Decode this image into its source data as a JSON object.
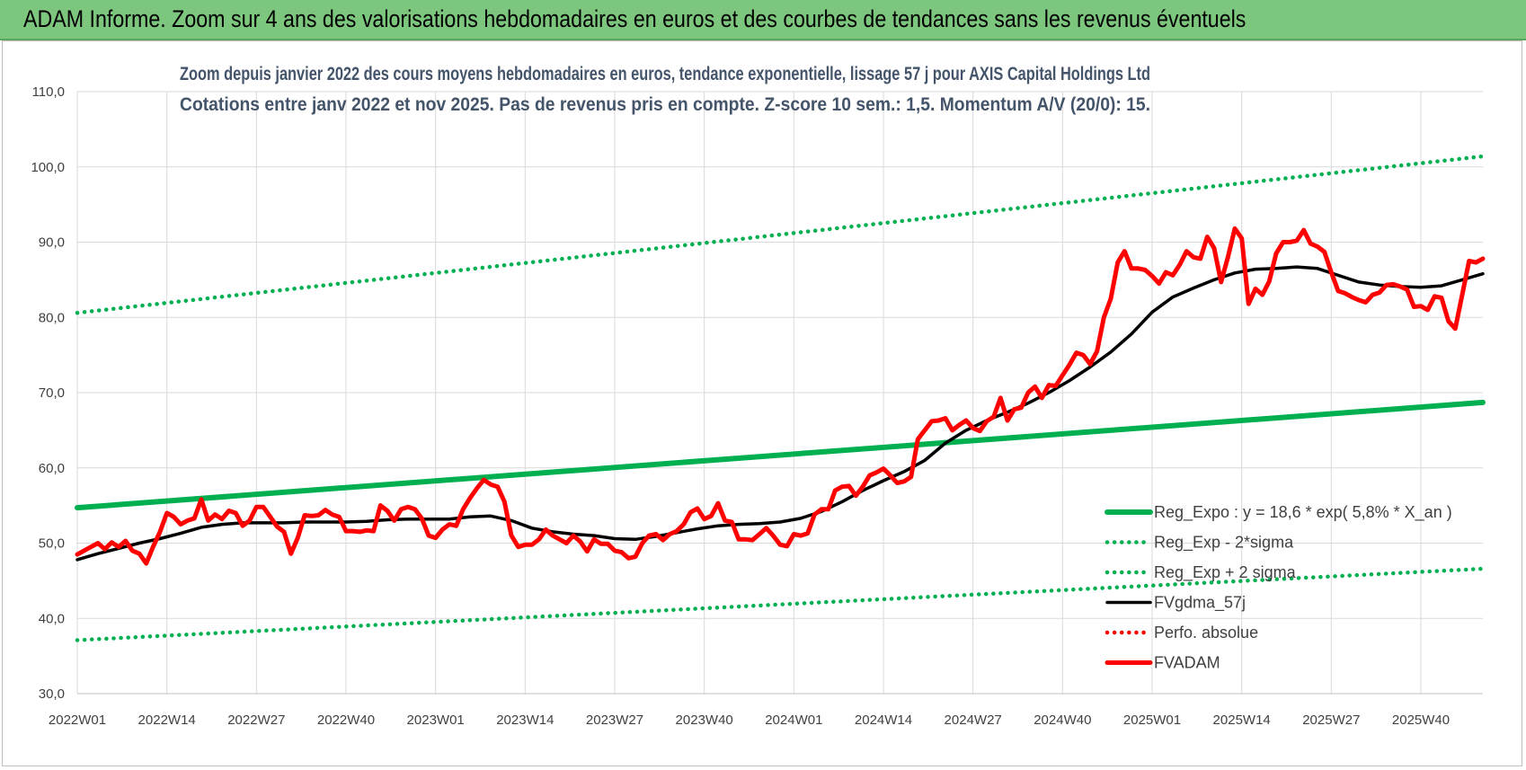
{
  "banner": {
    "title": "ADAM Informe. Zoom sur 4 ans des valorisations hebdomadaires en euros et des courbes de tendances sans les revenus éventuels"
  },
  "colors": {
    "banner": "#7dc67d",
    "trend": "#00b050",
    "price": "#ff0000",
    "moving_average": "#000000",
    "grid": "#d9d9d9"
  },
  "chart_data": {
    "type": "line",
    "title": "Zoom depuis janvier 2022 des cours moyens hebdomadaires en euros, tendance exponentielle, lissage 57 j pour AXIS Capital Holdings Ltd",
    "subtitle": "Cotations entre janv 2022 et nov 2025. Pas de revenus pris en compte. Z-score 10 sem.: 1,5. Momentum A/V (20/0): 15.",
    "ylim": [
      30,
      110
    ],
    "yticks": [
      "30,0",
      "40,0",
      "50,0",
      "60,0",
      "70,0",
      "80,0",
      "90,0",
      "100,0",
      "110,0"
    ],
    "x_tick_labels": [
      "2022W01",
      "2022W14",
      "2022W27",
      "2022W40",
      "2023W01",
      "2023W14",
      "2023W27",
      "2023W40",
      "2024W01",
      "2024W14",
      "2024W27",
      "2024W40",
      "2025W01",
      "2025W14",
      "2025W27",
      "2025W40"
    ],
    "x_tick_weeks": [
      0,
      13,
      26,
      39,
      52,
      65,
      78,
      91,
      104,
      117,
      130,
      143,
      156,
      169,
      182,
      195
    ],
    "x_range_weeks": [
      0,
      204
    ],
    "grid": true,
    "legend_position": "bottom-right",
    "series": [
      {
        "name": "Reg_Expo : y = 18,6 * exp( 5,8% *  X_an )",
        "style": "solid-thick",
        "color": "#00b050",
        "points": [
          [
            0,
            54.7
          ],
          [
            204,
            68.7
          ]
        ]
      },
      {
        "name": "Reg_Exp - 2*sigma",
        "style": "dotted",
        "color": "#00b050",
        "points": [
          [
            0,
            37.1
          ],
          [
            204,
            46.6
          ]
        ]
      },
      {
        "name": "Reg_Exp + 2 sigma",
        "style": "dotted",
        "color": "#00b050",
        "points": [
          [
            0,
            80.6
          ],
          [
            204,
            101.4
          ]
        ]
      },
      {
        "name": "FVgdma_57j",
        "style": "solid",
        "color": "#000000",
        "points": [
          [
            0,
            47.8
          ],
          [
            3,
            48.6
          ],
          [
            6,
            49.3
          ],
          [
            9,
            50.0
          ],
          [
            12,
            50.6
          ],
          [
            15,
            51.3
          ],
          [
            18,
            52.1
          ],
          [
            21,
            52.5
          ],
          [
            24,
            52.7
          ],
          [
            27,
            52.7
          ],
          [
            30,
            52.7
          ],
          [
            33,
            52.8
          ],
          [
            36,
            52.8
          ],
          [
            39,
            52.8
          ],
          [
            42,
            52.9
          ],
          [
            45,
            53.1
          ],
          [
            48,
            53.2
          ],
          [
            51,
            53.2
          ],
          [
            54,
            53.2
          ],
          [
            57,
            53.5
          ],
          [
            60,
            53.6
          ],
          [
            63,
            53.0
          ],
          [
            66,
            52.0
          ],
          [
            69,
            51.5
          ],
          [
            72,
            51.2
          ],
          [
            75,
            51.0
          ],
          [
            78,
            50.6
          ],
          [
            81,
            50.5
          ],
          [
            84,
            50.9
          ],
          [
            87,
            51.4
          ],
          [
            90,
            51.9
          ],
          [
            93,
            52.3
          ],
          [
            96,
            52.5
          ],
          [
            99,
            52.6
          ],
          [
            102,
            52.8
          ],
          [
            105,
            53.3
          ],
          [
            108,
            54.2
          ],
          [
            111,
            55.5
          ],
          [
            114,
            57.0
          ],
          [
            117,
            58.3
          ],
          [
            120,
            59.5
          ],
          [
            123,
            61.0
          ],
          [
            126,
            63.3
          ],
          [
            129,
            65.0
          ],
          [
            132,
            66.3
          ],
          [
            135,
            67.4
          ],
          [
            138,
            68.6
          ],
          [
            141,
            70.0
          ],
          [
            144,
            71.6
          ],
          [
            147,
            73.4
          ],
          [
            150,
            75.4
          ],
          [
            153,
            77.8
          ],
          [
            156,
            80.7
          ],
          [
            159,
            82.7
          ],
          [
            162,
            83.9
          ],
          [
            165,
            85.0
          ],
          [
            168,
            85.9
          ],
          [
            171,
            86.4
          ],
          [
            174,
            86.5
          ],
          [
            177,
            86.7
          ],
          [
            180,
            86.5
          ],
          [
            183,
            85.6
          ],
          [
            186,
            84.7
          ],
          [
            189,
            84.3
          ],
          [
            192,
            84.1
          ],
          [
            195,
            84.0
          ],
          [
            198,
            84.2
          ],
          [
            201,
            85.0
          ],
          [
            204,
            85.8
          ]
        ]
      },
      {
        "name": "Perfo. absolue",
        "style": "dotted",
        "color": "#ff0000",
        "points": []
      },
      {
        "name": "FVADAM",
        "style": "solid-thick",
        "color": "#ff0000",
        "points": [
          [
            0,
            48.5
          ],
          [
            2,
            49.5
          ],
          [
            3,
            50.0
          ],
          [
            4,
            49.2
          ],
          [
            5,
            50.1
          ],
          [
            6,
            49.5
          ],
          [
            7,
            50.3
          ],
          [
            8,
            49.0
          ],
          [
            9,
            48.6
          ],
          [
            10,
            47.3
          ],
          [
            11,
            49.5
          ],
          [
            12,
            51.5
          ],
          [
            13,
            54.0
          ],
          [
            14,
            53.5
          ],
          [
            15,
            52.5
          ],
          [
            16,
            53.0
          ],
          [
            17,
            53.3
          ],
          [
            18,
            55.8
          ],
          [
            19,
            53.0
          ],
          [
            20,
            53.8
          ],
          [
            21,
            53.2
          ],
          [
            22,
            54.3
          ],
          [
            23,
            54.0
          ],
          [
            24,
            52.3
          ],
          [
            25,
            53.0
          ],
          [
            26,
            54.8
          ],
          [
            27,
            54.8
          ],
          [
            28,
            53.5
          ],
          [
            29,
            52.2
          ],
          [
            30,
            51.5
          ],
          [
            31,
            48.6
          ],
          [
            32,
            50.7
          ],
          [
            33,
            53.7
          ],
          [
            34,
            53.6
          ],
          [
            35,
            53.7
          ],
          [
            36,
            54.4
          ],
          [
            37,
            53.8
          ],
          [
            38,
            53.5
          ],
          [
            39,
            51.6
          ],
          [
            40,
            51.6
          ],
          [
            41,
            51.5
          ],
          [
            42,
            51.7
          ],
          [
            43,
            51.6
          ],
          [
            44,
            55.0
          ],
          [
            45,
            54.3
          ],
          [
            46,
            53.0
          ],
          [
            47,
            54.5
          ],
          [
            48,
            54.8
          ],
          [
            49,
            54.5
          ],
          [
            50,
            53.3
          ],
          [
            51,
            51.0
          ],
          [
            52,
            50.7
          ],
          [
            53,
            51.8
          ],
          [
            54,
            52.5
          ],
          [
            55,
            52.3
          ],
          [
            56,
            54.5
          ],
          [
            57,
            56.0
          ],
          [
            58,
            57.3
          ],
          [
            59,
            58.4
          ],
          [
            60,
            57.8
          ],
          [
            61,
            57.5
          ],
          [
            62,
            55.5
          ],
          [
            63,
            51.0
          ],
          [
            64,
            49.5
          ],
          [
            65,
            49.8
          ],
          [
            66,
            49.8
          ],
          [
            67,
            50.5
          ],
          [
            68,
            51.8
          ],
          [
            69,
            51.0
          ],
          [
            70,
            50.5
          ],
          [
            71,
            50.0
          ],
          [
            72,
            51.0
          ],
          [
            73,
            50.2
          ],
          [
            74,
            48.9
          ],
          [
            75,
            50.5
          ],
          [
            76,
            49.9
          ],
          [
            77,
            49.9
          ],
          [
            78,
            49.0
          ],
          [
            79,
            48.8
          ],
          [
            80,
            48.0
          ],
          [
            81,
            48.2
          ],
          [
            82,
            50.0
          ],
          [
            83,
            51.0
          ],
          [
            84,
            51.2
          ],
          [
            85,
            50.4
          ],
          [
            86,
            51.2
          ],
          [
            87,
            51.6
          ],
          [
            88,
            52.5
          ],
          [
            89,
            54.1
          ],
          [
            90,
            54.6
          ],
          [
            91,
            53.2
          ],
          [
            92,
            53.6
          ],
          [
            93,
            55.3
          ],
          [
            94,
            53.0
          ],
          [
            95,
            52.8
          ],
          [
            96,
            50.5
          ],
          [
            97,
            50.5
          ],
          [
            98,
            50.4
          ],
          [
            99,
            51.2
          ],
          [
            100,
            52.0
          ],
          [
            101,
            51.0
          ],
          [
            102,
            49.8
          ],
          [
            103,
            49.6
          ],
          [
            104,
            51.2
          ],
          [
            105,
            51.0
          ],
          [
            106,
            51.3
          ],
          [
            107,
            53.8
          ],
          [
            108,
            54.5
          ],
          [
            109,
            54.5
          ],
          [
            110,
            57.0
          ],
          [
            111,
            57.5
          ],
          [
            112,
            57.6
          ],
          [
            113,
            56.3
          ],
          [
            114,
            57.5
          ],
          [
            115,
            59.0
          ],
          [
            116,
            59.4
          ],
          [
            117,
            59.9
          ],
          [
            118,
            59.0
          ],
          [
            119,
            58.0
          ],
          [
            120,
            58.2
          ],
          [
            121,
            58.8
          ],
          [
            122,
            63.8
          ],
          [
            123,
            65.0
          ],
          [
            124,
            66.2
          ],
          [
            125,
            66.3
          ],
          [
            126,
            66.6
          ],
          [
            127,
            65.0
          ],
          [
            128,
            65.7
          ],
          [
            129,
            66.3
          ],
          [
            130,
            65.3
          ],
          [
            131,
            64.9
          ],
          [
            132,
            66.2
          ],
          [
            133,
            66.8
          ],
          [
            134,
            69.3
          ],
          [
            135,
            66.3
          ],
          [
            136,
            67.8
          ],
          [
            137,
            68.0
          ],
          [
            138,
            70.0
          ],
          [
            139,
            70.8
          ],
          [
            140,
            69.3
          ],
          [
            141,
            71.0
          ],
          [
            142,
            70.9
          ],
          [
            143,
            72.3
          ],
          [
            144,
            73.7
          ],
          [
            145,
            75.3
          ],
          [
            146,
            75.0
          ],
          [
            147,
            73.8
          ],
          [
            148,
            75.5
          ],
          [
            149,
            80.0
          ],
          [
            150,
            82.5
          ],
          [
            151,
            87.3
          ],
          [
            152,
            88.8
          ],
          [
            153,
            86.5
          ],
          [
            154,
            86.5
          ],
          [
            155,
            86.3
          ],
          [
            156,
            85.5
          ],
          [
            157,
            84.5
          ],
          [
            158,
            86.0
          ],
          [
            159,
            85.6
          ],
          [
            160,
            87.0
          ],
          [
            161,
            88.8
          ],
          [
            162,
            88.0
          ],
          [
            163,
            87.8
          ],
          [
            164,
            90.7
          ],
          [
            165,
            89.2
          ],
          [
            166,
            84.7
          ],
          [
            167,
            88.0
          ],
          [
            168,
            91.8
          ],
          [
            169,
            90.5
          ],
          [
            170,
            81.8
          ],
          [
            171,
            83.8
          ],
          [
            172,
            83.0
          ],
          [
            173,
            84.8
          ],
          [
            174,
            88.5
          ],
          [
            175,
            90.0
          ],
          [
            176,
            90.0
          ],
          [
            177,
            90.2
          ],
          [
            178,
            91.6
          ],
          [
            179,
            89.8
          ],
          [
            180,
            89.4
          ],
          [
            181,
            88.7
          ],
          [
            182,
            86.0
          ],
          [
            183,
            83.5
          ],
          [
            184,
            83.2
          ],
          [
            185,
            82.7
          ],
          [
            186,
            82.3
          ],
          [
            187,
            82.0
          ],
          [
            188,
            83.0
          ],
          [
            189,
            83.3
          ],
          [
            190,
            84.3
          ],
          [
            191,
            84.4
          ],
          [
            192,
            84.1
          ],
          [
            193,
            83.7
          ],
          [
            194,
            81.4
          ],
          [
            195,
            81.5
          ],
          [
            196,
            81.0
          ],
          [
            197,
            82.8
          ],
          [
            198,
            82.6
          ],
          [
            199,
            79.5
          ],
          [
            200,
            78.5
          ],
          [
            201,
            83.0
          ],
          [
            202,
            87.5
          ],
          [
            203,
            87.3
          ],
          [
            204,
            87.8
          ]
        ]
      }
    ]
  }
}
